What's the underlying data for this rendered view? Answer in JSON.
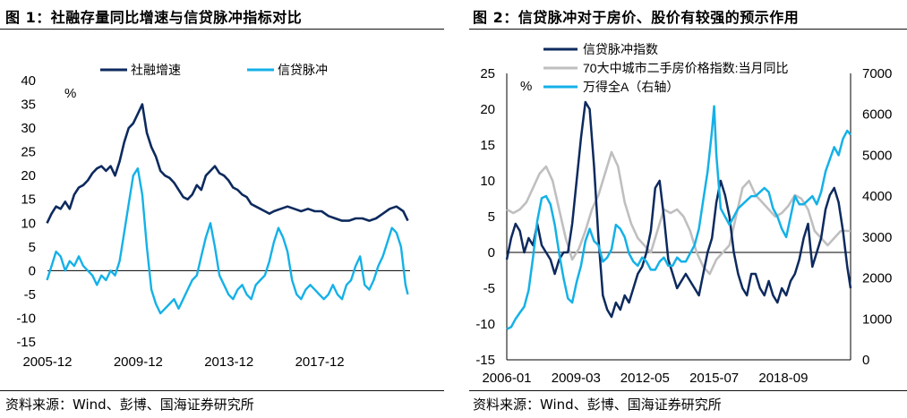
{
  "chart1": {
    "title": "图 1：社融存量同比增速与信贷脉冲指标对比",
    "source": "资料来源：Wind、彭博、国海证券研究所",
    "chart_data": {
      "type": "line",
      "title": "社融存量同比增速与信贷脉冲指标对比",
      "ylabel": "%",
      "ylim": [
        -15,
        40
      ],
      "yticks": [
        "40",
        "35",
        "30",
        "25",
        "20",
        "15",
        "10",
        "5",
        "0",
        "-5",
        "-10",
        "-15"
      ],
      "xticks": [
        "2005-12",
        "2009-12",
        "2013-12",
        "2017-12"
      ],
      "xrange": [
        2005.92,
        2021.9
      ],
      "tick_positions": [
        2005.92,
        2009.92,
        2013.92,
        2017.92
      ],
      "series": [
        {
          "name": "社融增速",
          "color": "#0d2a5e",
          "x": [
            2005.9,
            2006.1,
            2006.3,
            2006.5,
            2006.7,
            2006.9,
            2007.1,
            2007.3,
            2007.5,
            2007.7,
            2007.9,
            2008.1,
            2008.3,
            2008.5,
            2008.7,
            2008.9,
            2009.1,
            2009.3,
            2009.5,
            2009.7,
            2009.9,
            2010.1,
            2010.3,
            2010.5,
            2010.7,
            2010.9,
            2011.1,
            2011.3,
            2011.5,
            2011.7,
            2011.9,
            2012.1,
            2012.3,
            2012.5,
            2012.7,
            2012.9,
            2013.1,
            2013.3,
            2013.5,
            2013.7,
            2013.9,
            2014.1,
            2014.3,
            2014.5,
            2014.7,
            2014.9,
            2015.1,
            2015.3,
            2015.5,
            2015.7,
            2015.9,
            2016.2,
            2016.5,
            2016.8,
            2017.1,
            2017.4,
            2017.7,
            2018.0,
            2018.3,
            2018.6,
            2018.9,
            2019.2,
            2019.5,
            2019.8,
            2020.1,
            2020.4,
            2020.7,
            2021.0,
            2021.3,
            2021.6,
            2021.8
          ],
          "values": [
            10,
            12,
            13.5,
            13,
            14.5,
            13,
            16,
            17.5,
            18,
            19,
            20.5,
            21.5,
            22,
            21,
            22,
            20,
            23,
            27,
            30,
            31,
            33,
            35,
            29,
            26,
            24,
            21,
            20,
            19.5,
            18.5,
            17,
            15.5,
            15,
            16,
            18,
            17,
            20,
            21,
            22,
            20.5,
            20,
            19,
            17.5,
            17,
            16,
            15.5,
            14,
            13.5,
            13,
            12.5,
            12,
            12.5,
            13,
            13.5,
            13,
            12.5,
            13,
            12.5,
            12.5,
            11.5,
            11,
            10.5,
            10.5,
            11,
            11,
            10.5,
            11,
            12,
            13,
            13.5,
            12.5,
            10.5
          ]
        },
        {
          "name": "信贷脉冲",
          "color": "#14b1e7",
          "x": [
            2005.9,
            2006.1,
            2006.3,
            2006.5,
            2006.7,
            2006.9,
            2007.1,
            2007.3,
            2007.5,
            2007.7,
            2007.9,
            2008.1,
            2008.3,
            2008.5,
            2008.7,
            2008.9,
            2009.1,
            2009.3,
            2009.5,
            2009.7,
            2009.9,
            2010.1,
            2010.3,
            2010.5,
            2010.7,
            2010.9,
            2011.1,
            2011.3,
            2011.5,
            2011.7,
            2011.9,
            2012.1,
            2012.3,
            2012.5,
            2012.7,
            2012.9,
            2013.1,
            2013.3,
            2013.5,
            2013.7,
            2013.9,
            2014.1,
            2014.3,
            2014.5,
            2014.7,
            2014.9,
            2015.1,
            2015.3,
            2015.5,
            2015.7,
            2015.9,
            2016.1,
            2016.3,
            2016.5,
            2016.7,
            2016.9,
            2017.1,
            2017.3,
            2017.5,
            2017.7,
            2017.9,
            2018.1,
            2018.3,
            2018.5,
            2018.7,
            2018.9,
            2019.1,
            2019.3,
            2019.5,
            2019.7,
            2019.9,
            2020.1,
            2020.3,
            2020.5,
            2020.7,
            2020.9,
            2021.1,
            2021.3,
            2021.5,
            2021.7,
            2021.8
          ],
          "values": [
            -2,
            1,
            4,
            3,
            0,
            2,
            1,
            3,
            1,
            0,
            -1,
            -3,
            -1,
            -2,
            0,
            -1,
            2,
            8,
            14,
            20,
            21.5,
            16,
            5,
            -4,
            -7,
            -9,
            -8,
            -7,
            -6,
            -8,
            -6,
            -4,
            -2,
            -1,
            3,
            7,
            10,
            5,
            -1,
            -3,
            -5,
            -6,
            -4,
            -3,
            -5,
            -6,
            -3,
            -2,
            -1,
            2,
            6,
            9,
            7,
            4,
            -2,
            -5,
            -6,
            -4,
            -3,
            -4,
            -5,
            -6,
            -5,
            -3,
            -5,
            -6,
            -3,
            -2,
            1,
            3,
            -3,
            -4,
            -2,
            1,
            3,
            6,
            9,
            8,
            5,
            -3,
            -5
          ]
        }
      ]
    }
  },
  "chart2": {
    "title": "图 2：信贷脉冲对于房价、股价有较强的预示作用",
    "source": "资料来源：Wind、彭博、国海证券研究所",
    "chart_data": {
      "type": "line",
      "title": "信贷脉冲对于房价、股价有较强的预示作用",
      "ylabel": "%",
      "ylim": [
        -15,
        25
      ],
      "yticks": [
        "25",
        "20",
        "15",
        "10",
        "5",
        "0",
        "-5",
        "-10",
        "-15"
      ],
      "ylim_right": [
        0,
        7000
      ],
      "yticks_right": [
        "7000",
        "6000",
        "5000",
        "4000",
        "3000",
        "2000",
        "1000",
        "0"
      ],
      "xticks": [
        "2006-01",
        "2009-03",
        "2012-05",
        "2015-07",
        "2018-09"
      ],
      "xrange": [
        2006.0,
        2021.75
      ],
      "tick_positions": [
        2006.0,
        2009.17,
        2012.33,
        2015.5,
        2018.67
      ],
      "series": [
        {
          "name": "信贷脉冲指数",
          "color": "#0d2a5e",
          "axis": "left",
          "x": [
            2006.0,
            2006.2,
            2006.4,
            2006.6,
            2006.8,
            2007.0,
            2007.2,
            2007.4,
            2007.6,
            2007.8,
            2008.0,
            2008.2,
            2008.4,
            2008.6,
            2008.8,
            2009.0,
            2009.2,
            2009.4,
            2009.6,
            2009.8,
            2010.0,
            2010.2,
            2010.4,
            2010.6,
            2010.8,
            2011.0,
            2011.2,
            2011.4,
            2011.6,
            2011.8,
            2012.0,
            2012.2,
            2012.4,
            2012.6,
            2012.8,
            2013.0,
            2013.2,
            2013.4,
            2013.6,
            2013.8,
            2014.0,
            2014.2,
            2014.4,
            2014.6,
            2014.8,
            2015.0,
            2015.2,
            2015.4,
            2015.6,
            2015.8,
            2016.0,
            2016.2,
            2016.4,
            2016.6,
            2016.8,
            2017.0,
            2017.2,
            2017.4,
            2017.6,
            2017.8,
            2018.0,
            2018.2,
            2018.4,
            2018.6,
            2018.8,
            2019.0,
            2019.2,
            2019.4,
            2019.6,
            2019.8,
            2020.0,
            2020.2,
            2020.4,
            2020.6,
            2020.8,
            2021.0,
            2021.2,
            2021.4,
            2021.6,
            2021.75
          ],
          "values": [
            -1,
            2,
            4,
            3,
            0,
            2,
            1,
            4,
            1,
            0,
            -1,
            -3,
            -1,
            0,
            0,
            4,
            10,
            16,
            21,
            20,
            12,
            2,
            -6,
            -8,
            -9,
            -7,
            -8,
            -6,
            -7,
            -5,
            -3,
            -2,
            0,
            3,
            9,
            10,
            5,
            -1,
            -3,
            -5,
            -4,
            -3,
            -4,
            -5,
            -6,
            -3,
            0,
            2,
            7,
            10,
            8,
            5,
            0,
            -3,
            -5,
            -6,
            -3,
            -3,
            -5,
            -6,
            -4,
            -6,
            -7,
            -5,
            -6,
            -4,
            -3,
            -1,
            2,
            4,
            -2,
            0,
            2,
            6,
            8,
            9,
            7,
            3,
            -2,
            -5
          ]
        },
        {
          "name": "70大中城市二手房价格指数:当月同比",
          "color": "#bfbfbf",
          "axis": "left",
          "x": [
            2006.0,
            2006.3,
            2006.6,
            2006.9,
            2007.2,
            2007.5,
            2007.8,
            2008.1,
            2008.4,
            2008.7,
            2009.0,
            2009.3,
            2009.6,
            2009.9,
            2010.2,
            2010.5,
            2010.8,
            2011.1,
            2011.4,
            2011.7,
            2012.0,
            2012.3,
            2012.6,
            2012.9,
            2013.2,
            2013.5,
            2013.8,
            2014.1,
            2014.4,
            2014.7,
            2015.0,
            2015.3,
            2015.6,
            2015.9,
            2016.2,
            2016.5,
            2016.8,
            2017.1,
            2017.4,
            2017.7,
            2018.0,
            2018.3,
            2018.6,
            2018.9,
            2019.2,
            2019.5,
            2019.8,
            2020.1,
            2020.4,
            2020.7,
            2021.0,
            2021.3,
            2021.6,
            2021.75
          ],
          "values": [
            6,
            5.5,
            6,
            7,
            9,
            11,
            12,
            10,
            6,
            2,
            -1,
            0.5,
            3,
            6,
            8,
            11,
            14,
            12,
            7,
            4,
            2,
            1,
            0,
            3,
            6,
            5.5,
            6,
            5,
            3,
            0,
            -2,
            -3,
            -1,
            0,
            1,
            5,
            9,
            10,
            8,
            7,
            6,
            5,
            5.5,
            6.5,
            8,
            7.5,
            6,
            3,
            2,
            1,
            2,
            3,
            3,
            3
          ]
        },
        {
          "name": "万得全A（右轴）",
          "color": "#14b1e7",
          "axis": "right",
          "x": [
            2006.0,
            2006.2,
            2006.4,
            2006.6,
            2006.8,
            2007.0,
            2007.2,
            2007.4,
            2007.6,
            2007.8,
            2008.0,
            2008.2,
            2008.4,
            2008.6,
            2008.8,
            2009.0,
            2009.2,
            2009.4,
            2009.6,
            2009.8,
            2010.0,
            2010.2,
            2010.4,
            2010.6,
            2010.8,
            2011.0,
            2011.2,
            2011.4,
            2011.6,
            2011.8,
            2012.0,
            2012.2,
            2012.4,
            2012.6,
            2012.8,
            2013.0,
            2013.2,
            2013.4,
            2013.6,
            2013.8,
            2014.0,
            2014.2,
            2014.4,
            2014.6,
            2014.8,
            2015.0,
            2015.2,
            2015.4,
            2015.5,
            2015.6,
            2015.8,
            2016.0,
            2016.2,
            2016.4,
            2016.6,
            2016.8,
            2017.0,
            2017.2,
            2017.4,
            2017.6,
            2017.8,
            2018.0,
            2018.2,
            2018.4,
            2018.6,
            2018.8,
            2019.0,
            2019.2,
            2019.4,
            2019.6,
            2019.8,
            2020.0,
            2020.2,
            2020.4,
            2020.6,
            2020.8,
            2021.0,
            2021.2,
            2021.4,
            2021.6,
            2021.75
          ],
          "values": [
            750,
            800,
            1000,
            1150,
            1300,
            1700,
            2500,
            3400,
            3950,
            4000,
            3800,
            3300,
            2600,
            2000,
            1500,
            1400,
            1900,
            2300,
            2900,
            3200,
            2900,
            2800,
            2400,
            2500,
            2700,
            3300,
            3200,
            3000,
            2600,
            2400,
            2300,
            2500,
            2400,
            2200,
            2200,
            2400,
            2500,
            2300,
            2300,
            2500,
            2400,
            2400,
            2600,
            2800,
            3200,
            3900,
            4600,
            5600,
            6200,
            5000,
            3700,
            3500,
            3300,
            3500,
            3700,
            3800,
            3900,
            4000,
            4000,
            4100,
            4200,
            4100,
            3700,
            3500,
            3200,
            3000,
            3500,
            4000,
            3800,
            3800,
            3900,
            4000,
            3800,
            4100,
            4600,
            4900,
            5200,
            5000,
            5400,
            5600,
            5500
          ]
        }
      ]
    }
  }
}
